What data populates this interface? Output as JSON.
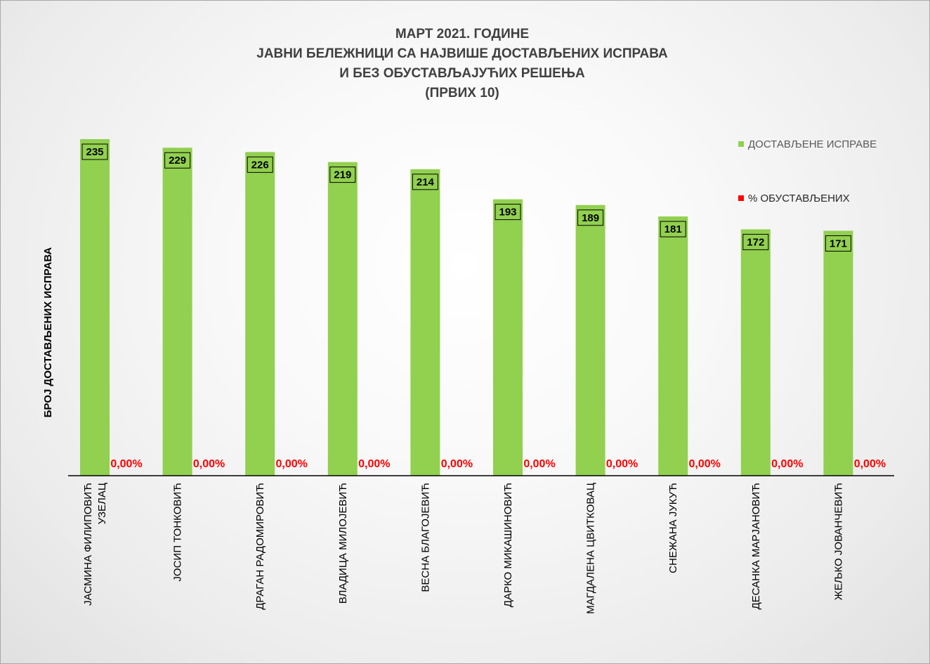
{
  "chart_data": {
    "type": "bar",
    "title_lines": [
      "МАРТ 2021. ГОДИНЕ",
      "ЈАВНИ БЕЛЕЖНИЦИ СА НАЈВИШЕ ДОСТАВЉЕНИХ ИСПРАВА",
      "И БЕЗ ОБУСТАВЉАЈУЋИХ РЕШЕЊА",
      "(ПРВИХ 10)"
    ],
    "ylabel": "БРОЈ ДОСТАВЉЕНИХ ИСПРАВА",
    "xlabel": "",
    "categories": [
      [
        "ЈАСМИНА ФИЛИПОВИЋ",
        "УЗЕЛАЦ"
      ],
      [
        "ЈОСИП ТОНКОВИЋ"
      ],
      [
        "ДРАГАН РАДОМИРОВИЋ"
      ],
      [
        "ВЛАДИЦА МИЛОЈЕВИЋ"
      ],
      [
        "ВЕСНА БЛАГОЈЕВИЋ"
      ],
      [
        "ДАРКО МИКАШИНОВИЋ"
      ],
      [
        "МАГДАЛЕНА ЦВИТКОВАЦ"
      ],
      [
        "СНЕЖАНА ЈУКУЋ"
      ],
      [
        "ДЕСАНКА МАРЈАНОВИЋ"
      ],
      [
        "ЖЕЉКО ЈОВАНЧЕВИЋ"
      ]
    ],
    "series": [
      {
        "name": "ДОСТАВЉЕНЕ ИСПРАВЕ",
        "color": "#92d050",
        "values": [
          235,
          229,
          226,
          219,
          214,
          193,
          189,
          181,
          172,
          171
        ],
        "labels": [
          "235",
          "229",
          "226",
          "219",
          "214",
          "193",
          "189",
          "181",
          "172",
          "171"
        ]
      },
      {
        "name": "% ОБУСТАВЉЕНИХ",
        "color": "#ff0000",
        "values": [
          0,
          0,
          0,
          0,
          0,
          0,
          0,
          0,
          0,
          0
        ],
        "labels": [
          "0,00%",
          "0,00%",
          "0,00%",
          "0,00%",
          "0,00%",
          "0,00%",
          "0,00%",
          "0,00%",
          "0,00%",
          "0,00%"
        ]
      }
    ],
    "ylim": [
      0,
      235
    ],
    "grid": false,
    "legend_position": "top-right"
  }
}
